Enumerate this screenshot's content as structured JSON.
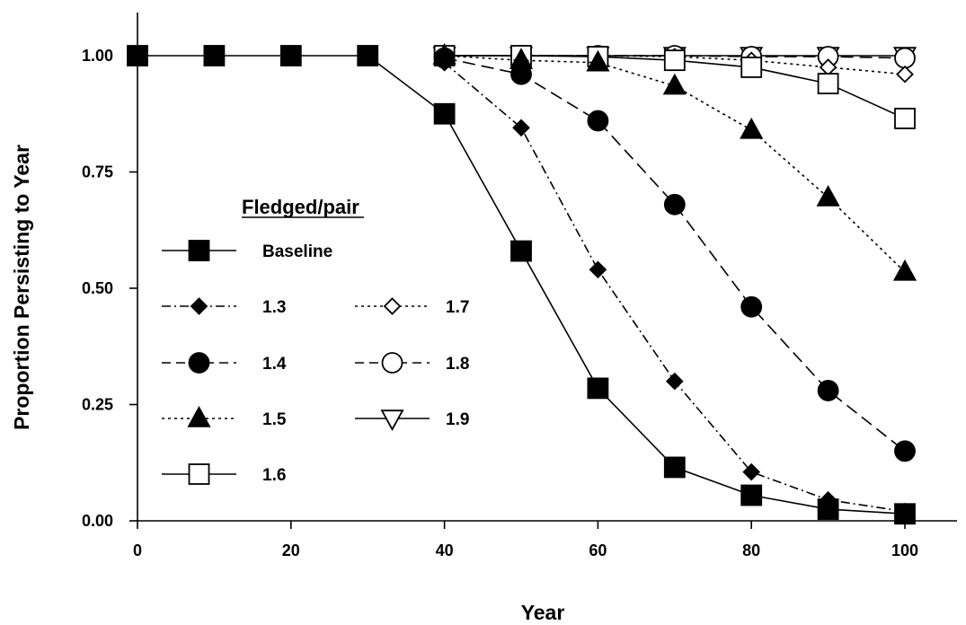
{
  "chart_data": {
    "type": "line",
    "title": "",
    "xlabel": "Year",
    "ylabel": "Proportion Persisting to Year",
    "xlim": [
      0,
      100
    ],
    "ylim": [
      0,
      1
    ],
    "x_ticks": [
      "0",
      "20",
      "40",
      "60",
      "80",
      "100"
    ],
    "y_ticks": [
      "0.00",
      "0.25",
      "0.50",
      "0.75",
      "1.00"
    ],
    "grid": false,
    "legend_title": "Fledged/pair",
    "legend_placement": "center-left",
    "series": [
      {
        "name": "Baseline",
        "marker": "square-filled",
        "line": "solid",
        "x": [
          0,
          10,
          20,
          30,
          40,
          50,
          60,
          70,
          80,
          90,
          100
        ],
        "values": [
          1.0,
          1.0,
          1.0,
          1.0,
          0.875,
          0.58,
          0.285,
          0.115,
          0.055,
          0.025,
          0.015
        ]
      },
      {
        "name": "1.3",
        "marker": "diamond-filled",
        "line": "dash-dot",
        "x": [
          40,
          50,
          60,
          70,
          80,
          90,
          100
        ],
        "values": [
          0.985,
          0.845,
          0.54,
          0.3,
          0.105,
          0.045,
          0.02
        ]
      },
      {
        "name": "1.4",
        "marker": "circle-filled",
        "line": "dashed",
        "x": [
          40,
          50,
          60,
          70,
          80,
          90,
          100
        ],
        "values": [
          0.995,
          0.96,
          0.86,
          0.68,
          0.46,
          0.28,
          0.15
        ]
      },
      {
        "name": "1.5",
        "marker": "triangle-up-filled",
        "line": "dotted",
        "x": [
          40,
          50,
          60,
          70,
          80,
          90,
          100
        ],
        "values": [
          1.0,
          0.99,
          0.985,
          0.935,
          0.84,
          0.695,
          0.535
        ]
      },
      {
        "name": "1.6",
        "marker": "square-open",
        "line": "solid",
        "x": [
          40,
          50,
          60,
          70,
          80,
          90,
          100
        ],
        "values": [
          1.0,
          1.0,
          0.998,
          0.99,
          0.975,
          0.94,
          0.865
        ]
      },
      {
        "name": "1.7",
        "marker": "diamond-open",
        "line": "dotted",
        "x": [
          40,
          50,
          60,
          70,
          80,
          90,
          100
        ],
        "values": [
          1.0,
          1.0,
          1.0,
          0.998,
          0.99,
          0.975,
          0.96
        ]
      },
      {
        "name": "1.8",
        "marker": "circle-open",
        "line": "dashed",
        "x": [
          40,
          50,
          60,
          70,
          80,
          90,
          100
        ],
        "values": [
          1.0,
          1.0,
          1.0,
          1.0,
          0.998,
          0.998,
          0.995
        ]
      },
      {
        "name": "1.9",
        "marker": "triangle-down-open",
        "line": "solid",
        "x": [
          40,
          50,
          60,
          70,
          80,
          90,
          100
        ],
        "values": [
          1.0,
          1.0,
          1.0,
          1.0,
          1.0,
          1.0,
          1.0
        ]
      }
    ]
  }
}
